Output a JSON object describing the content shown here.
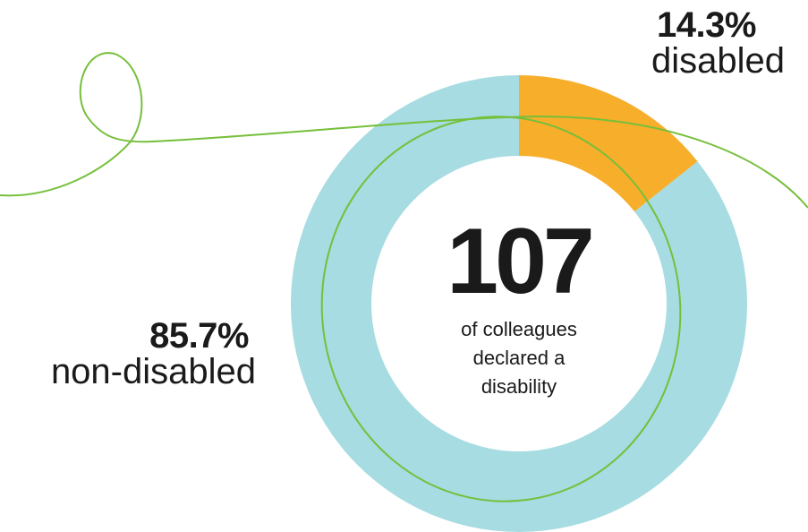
{
  "colors": {
    "disabled": "#F7AE2A",
    "non_disabled": "#A6DCE2",
    "accent_line": "#76BF3A",
    "text": "#1a1a1a"
  },
  "center": {
    "number": "107",
    "caption": "of colleagues declared a disability"
  },
  "labels": {
    "disabled_pct": "14.3%",
    "disabled_text": "disabled",
    "non_disabled_pct": "85.7%",
    "non_disabled_text": "non-disabled"
  },
  "chart_data": {
    "type": "pie",
    "style": "donut",
    "slices": [
      {
        "label": "disabled",
        "value": 14.3,
        "color": "#F7AE2A"
      },
      {
        "label": "non-disabled",
        "value": 85.7,
        "color": "#A6DCE2"
      }
    ]
  }
}
